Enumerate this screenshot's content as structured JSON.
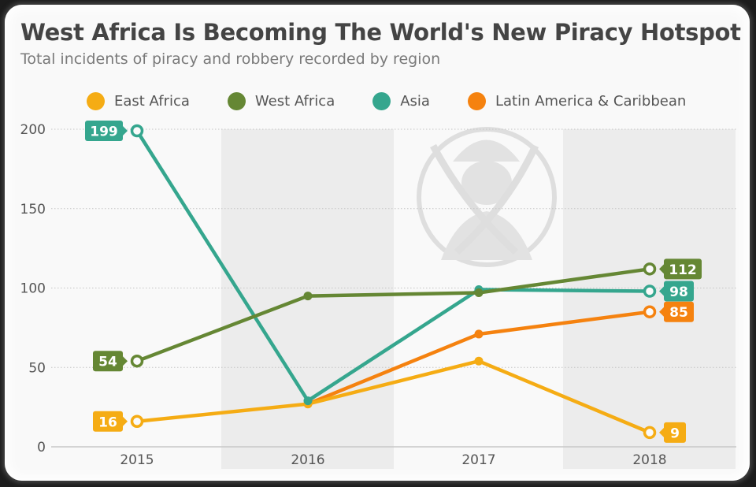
{
  "chart_data": {
    "type": "line",
    "title": "West Africa Is Becoming The World's New Piracy Hotspot",
    "subtitle": "Total incidents of piracy and robbery recorded by region",
    "xlabel": "",
    "ylabel": "",
    "x": [
      "2015",
      "2016",
      "2017",
      "2018"
    ],
    "ylim": [
      0,
      200
    ],
    "yticks": [
      0,
      50,
      100,
      150,
      200
    ],
    "grid": true,
    "legend_position": "top",
    "series": [
      {
        "name": "East Africa",
        "color": "#f5ac14",
        "values": [
          16,
          27,
          54,
          9
        ],
        "labeled": [
          true,
          false,
          false,
          true
        ]
      },
      {
        "name": "West Africa",
        "color": "#658734",
        "values": [
          54,
          95,
          97,
          112
        ],
        "labeled": [
          true,
          false,
          false,
          true
        ]
      },
      {
        "name": "Asia",
        "color": "#35a68e",
        "values": [
          199,
          29,
          99,
          98
        ],
        "labeled": [
          true,
          false,
          false,
          true
        ]
      },
      {
        "name": "Latin America & Caribbean",
        "color": "#f5820f",
        "values": [
          null,
          27,
          71,
          85
        ],
        "labeled": [
          false,
          false,
          false,
          true
        ]
      }
    ],
    "shaded_columns": [
      "2016",
      "2018"
    ],
    "watermark": "pirate-icon"
  },
  "header": {
    "title": "West Africa Is Becoming The World's New Piracy Hotspot",
    "subtitle": "Total incidents of piracy and robbery recorded by region"
  },
  "legend": [
    {
      "label": "East Africa",
      "color": "#f5ac14"
    },
    {
      "label": "West Africa",
      "color": "#658734"
    },
    {
      "label": "Asia",
      "color": "#35a68e"
    },
    {
      "label": "Latin America & Caribbean",
      "color": "#f5820f"
    }
  ]
}
